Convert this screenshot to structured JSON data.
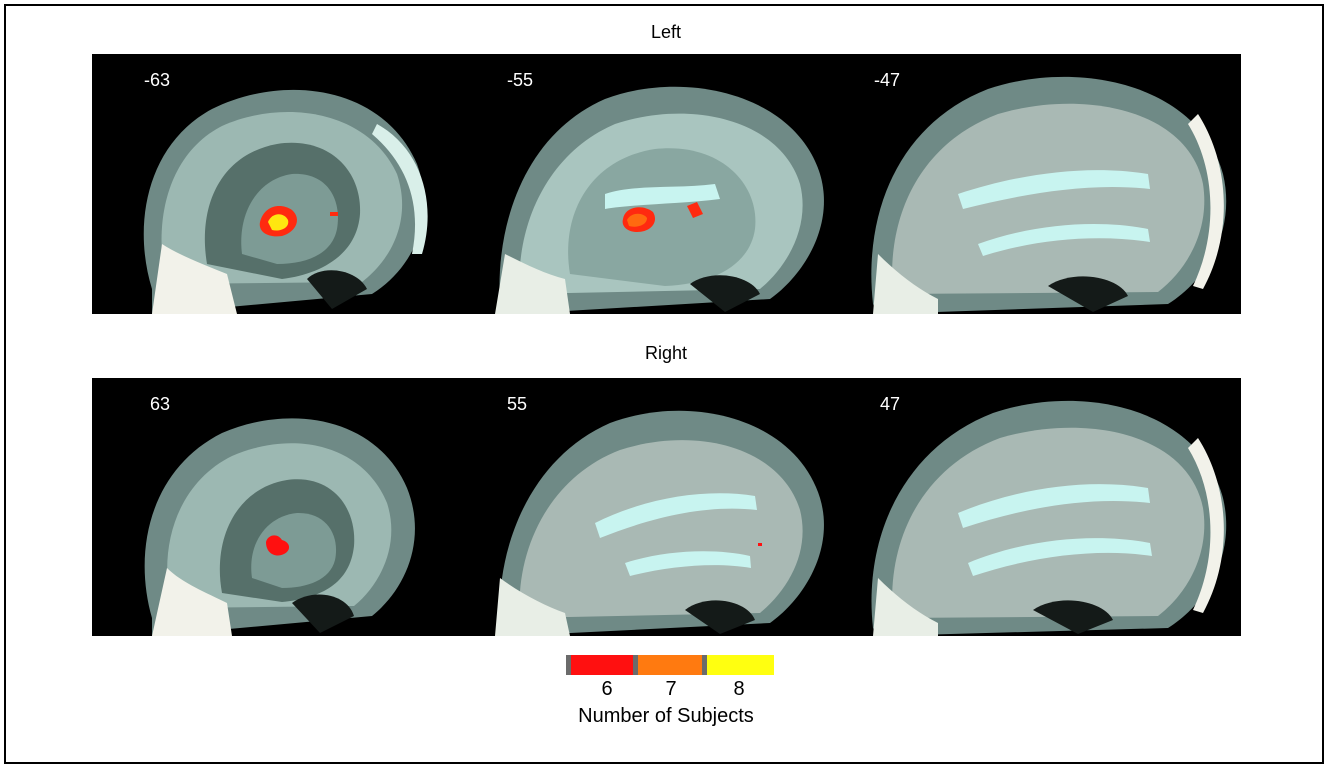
{
  "rows": [
    {
      "title": "Left",
      "panels": [
        {
          "coord": "-63"
        },
        {
          "coord": "-55"
        },
        {
          "coord": "-47"
        }
      ]
    },
    {
      "title": "Right",
      "panels": [
        {
          "coord": "63"
        },
        {
          "coord": "55"
        },
        {
          "coord": "47"
        }
      ]
    }
  ],
  "legend": {
    "title": "Number of Subjects",
    "entries": [
      {
        "label": "6",
        "color": "#ff1010"
      },
      {
        "label": "7",
        "color": "#ff7a10"
      },
      {
        "label": "8",
        "color": "#ffff10"
      }
    ]
  },
  "colors": {
    "background": "#000000",
    "brain_tissue": "#8ea8a2",
    "brain_highlight": "#c8f4f0",
    "skull": "#f2f2ea"
  }
}
